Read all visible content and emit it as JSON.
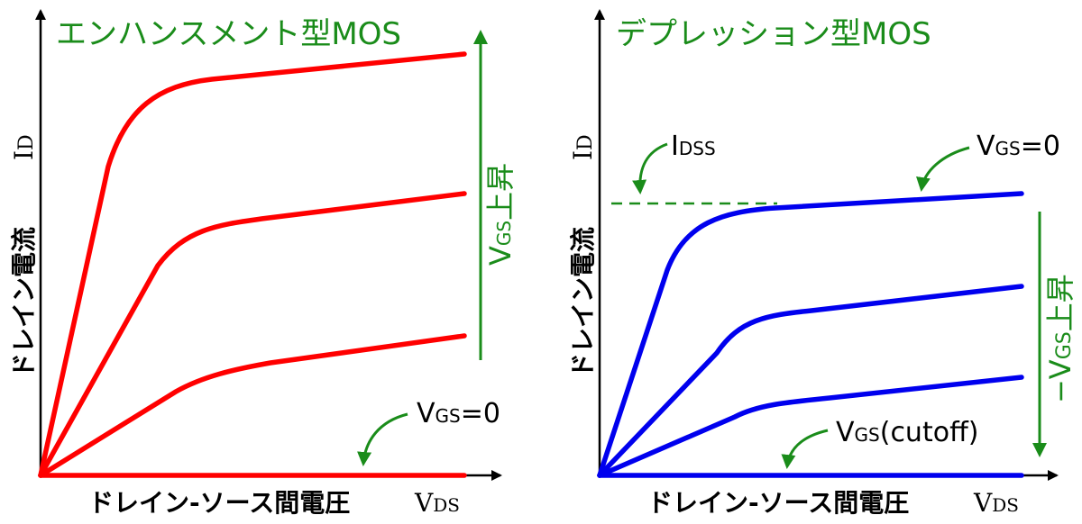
{
  "left_panel": {
    "title": "エンハンスメント型MOS",
    "y_axis_label": "ドレイン電流",
    "y_axis_symbol": "I",
    "y_axis_symbol_sub": "D",
    "x_axis_label": "ドレイン-ソース間電圧",
    "x_axis_symbol": "V",
    "x_axis_symbol_sub": "DS",
    "increase_label_v": "V",
    "increase_label_sub": "GS",
    "increase_label_rest": "上昇",
    "vgs_zero_v": "V",
    "vgs_zero_sub": "GS",
    "vgs_zero_rest": "=0",
    "curve_color": "#ff0000",
    "arrow_color": "#1a8c1a"
  },
  "right_panel": {
    "title": "デプレッション型MOS",
    "y_axis_label": "ドレイン電流",
    "y_axis_symbol": "I",
    "y_axis_symbol_sub": "D",
    "x_axis_label": "ドレイン-ソース間電圧",
    "x_axis_symbol": "V",
    "x_axis_symbol_sub": "DS",
    "idss_main": "I",
    "idss_sub": "DSS",
    "vgs_zero_v": "V",
    "vgs_zero_sub": "GS",
    "vgs_zero_rest": "=0",
    "decrease_label_minus": "−",
    "decrease_label_v": "V",
    "decrease_label_sub": "GS",
    "decrease_label_rest": "上昇",
    "cutoff_v": "V",
    "cutoff_sub": "GS",
    "cutoff_rest": "(cutoff)",
    "curve_color": "#0000ee",
    "arrow_color": "#1a8c1a"
  }
}
